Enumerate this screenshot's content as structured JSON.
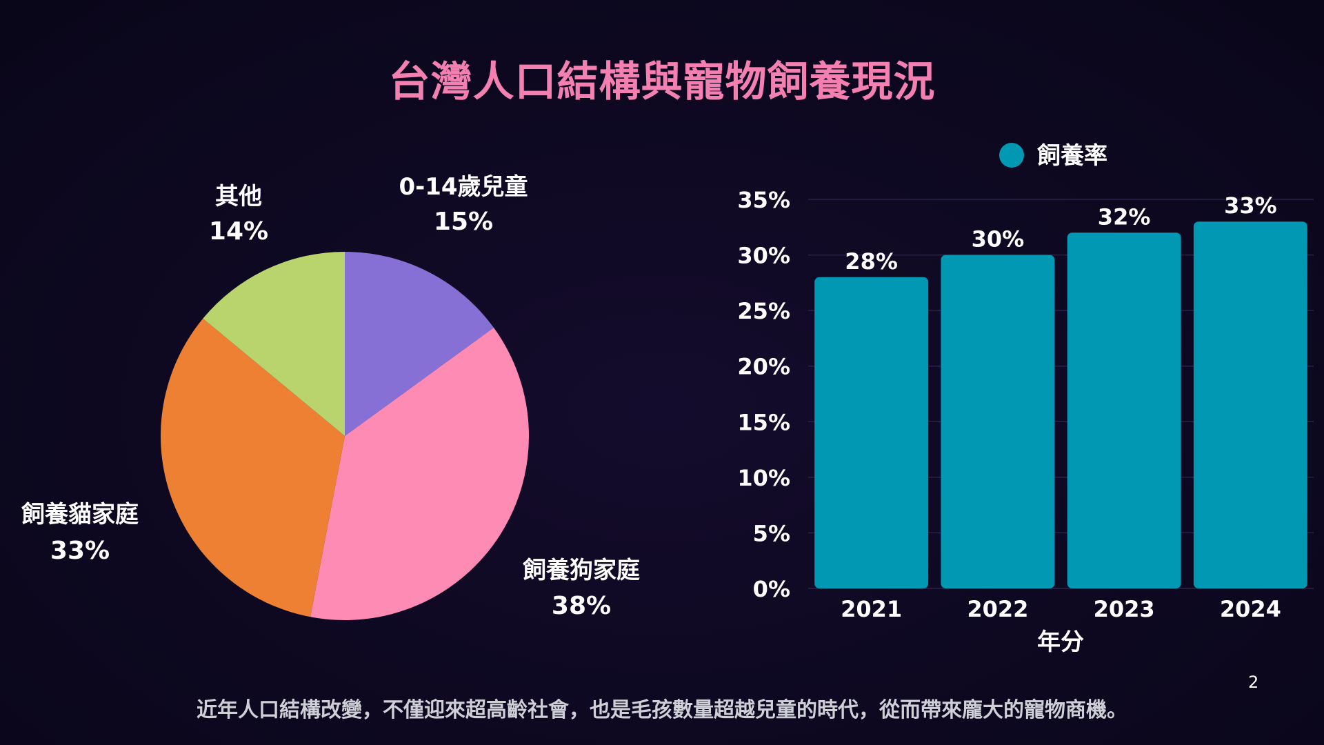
{
  "slide": {
    "title": "台灣人口結構與寵物飼養現況",
    "footer": "近年人口結構改變，不僅迎來超高齡社會，也是毛孩數量超越兒童的時代，從而帶來龐大的寵物商機。",
    "page_number": "2"
  },
  "chart_data": [
    {
      "type": "pie",
      "slices": [
        {
          "label": "0-14歲兒童",
          "value": 15,
          "display": "15%",
          "color": "#8670d6"
        },
        {
          "label": "飼養狗家庭",
          "value": 38,
          "display": "38%",
          "color": "#fd8bb3"
        },
        {
          "label": "飼養貓家庭",
          "value": 33,
          "display": "33%",
          "color": "#ed8033"
        },
        {
          "label": "其他",
          "value": 14,
          "display": "14%",
          "color": "#b9d36d"
        }
      ]
    },
    {
      "type": "bar",
      "categories": [
        "2021",
        "2022",
        "2023",
        "2024"
      ],
      "series": [
        {
          "name": "飼養率",
          "values": [
            28,
            30,
            32,
            33
          ],
          "labels": [
            "28%",
            "30%",
            "32%",
            "33%"
          ],
          "color": "#0098b3"
        }
      ],
      "xlabel": "年分",
      "ylabel": "",
      "ylim": [
        0,
        35
      ],
      "yticks": [
        "0%",
        "5%",
        "10%",
        "15%",
        "20%",
        "25%",
        "30%",
        "35%"
      ],
      "legend": "top",
      "grid": true
    }
  ]
}
